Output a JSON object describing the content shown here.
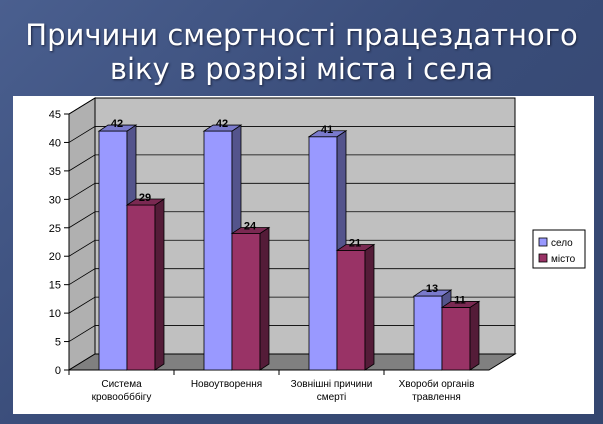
{
  "slide": {
    "title_line1": "Причини смертності працездатного",
    "title_line2": "віку в розрізі міста і села"
  },
  "colors": {
    "background": "#3f5283",
    "село": "#9999ff",
    "місто": "#993366",
    "floor": "#808080",
    "wall": "#c0c0c0"
  },
  "chart_data": {
    "type": "bar",
    "categories": [
      [
        "Система",
        "кровообббігу"
      ],
      [
        "Новоутворення"
      ],
      [
        "Зовнішні причини",
        "смерті"
      ],
      [
        "Хвороби органів",
        "травлення"
      ]
    ],
    "series": [
      {
        "name": "село",
        "values": [
          42,
          42,
          41,
          13
        ],
        "labels": [
          "42",
          "42",
          "41",
          "13"
        ]
      },
      {
        "name": "місто",
        "values": [
          29,
          24,
          21,
          11
        ],
        "labels": [
          "29",
          "24",
          "21",
          "11"
        ]
      }
    ],
    "ylim": [
      0,
      45
    ],
    "yticks": [
      0,
      5,
      10,
      15,
      20,
      25,
      30,
      35,
      40,
      45
    ],
    "grid": true,
    "legend": "right",
    "style": "3d"
  }
}
